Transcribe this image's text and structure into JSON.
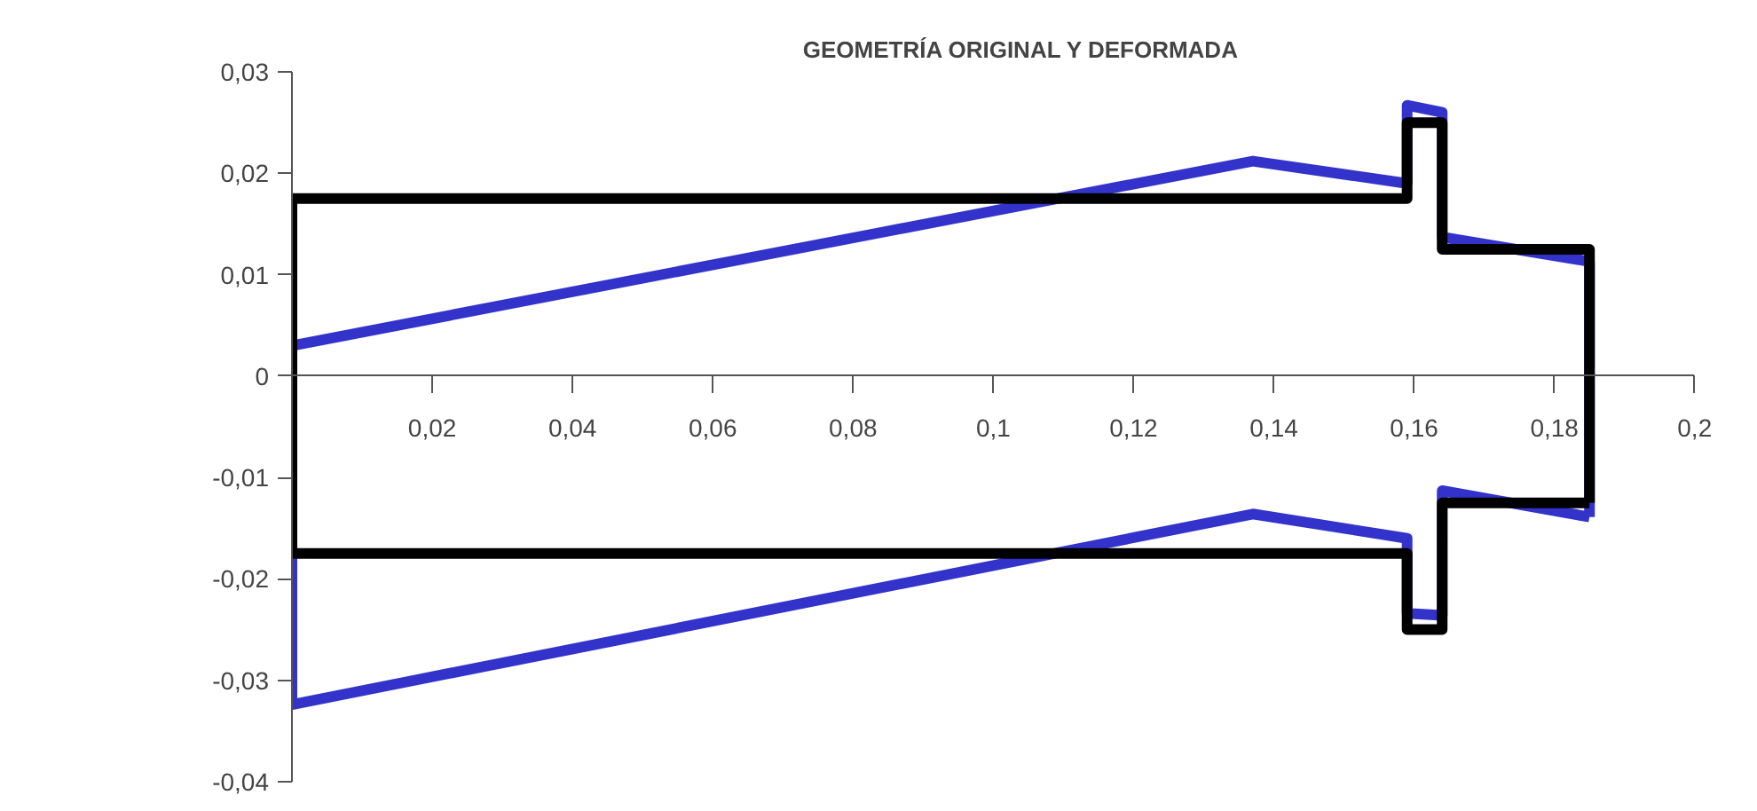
{
  "chart_data": {
    "type": "line",
    "title": "GEOMETRÍA ORIGINAL Y DEFORMADA",
    "series": [
      {
        "color": "#3333cc",
        "x": [
          0,
          0.137,
          0.159,
          0.159,
          0.164,
          0.164,
          0.185,
          0.185
        ],
        "values": [
          0.003,
          0.0212,
          0.019,
          0.0267,
          0.026,
          0.0137,
          0.0113,
          -0.0139
        ]
      },
      {
        "color": "#3333cc",
        "x": [
          0,
          0,
          0.137,
          0.159,
          0.159,
          0.164,
          0.164,
          0.185
        ],
        "values": [
          0.003,
          -0.0324,
          -0.0136,
          -0.016,
          -0.0234,
          -0.0236,
          -0.0113,
          -0.0139
        ]
      },
      {
        "color": "#000000",
        "x": [
          0,
          0.159,
          0.159,
          0.164,
          0.164,
          0.185,
          0.185
        ],
        "values": [
          0.0175,
          0.0175,
          0.025,
          0.025,
          0.0125,
          0.0125,
          -0.0125
        ]
      },
      {
        "color": "#000000",
        "x": [
          0,
          0,
          0.159,
          0.159,
          0.164,
          0.164,
          0.185
        ],
        "values": [
          0.0175,
          -0.0175,
          -0.0175,
          -0.025,
          -0.025,
          -0.0125,
          -0.0125
        ]
      }
    ],
    "xlim": [
      0,
      0.2
    ],
    "xticks": [
      {
        "value": 0,
        "label": null
      },
      {
        "value": 0.02,
        "label": "0,02"
      },
      {
        "value": 0.04,
        "label": "0,04"
      },
      {
        "value": 0.06,
        "label": "0,06"
      },
      {
        "value": 0.08,
        "label": "0,08"
      },
      {
        "value": 0.1,
        "label": "0,1"
      },
      {
        "value": 0.12,
        "label": "0,12"
      },
      {
        "value": 0.14,
        "label": "0,14"
      },
      {
        "value": 0.16,
        "label": "0,16"
      },
      {
        "value": 0.18,
        "label": "0,18"
      },
      {
        "value": 0.2,
        "label": "0,2"
      }
    ],
    "ylim": [
      -0.04,
      0.03
    ],
    "yticks": [
      {
        "value": -0.04,
        "label": "-0,04"
      },
      {
        "value": -0.03,
        "label": "-0,03"
      },
      {
        "value": -0.02,
        "label": "-0,02"
      },
      {
        "value": -0.01,
        "label": "-0,01"
      },
      0,
      {
        "value": 0.01,
        "label": "0,01"
      },
      {
        "value": 0.02,
        "label": "0,02"
      },
      {
        "value": 0.03,
        "label": "0,03"
      }
    ],
    "line_style": "solid"
  }
}
